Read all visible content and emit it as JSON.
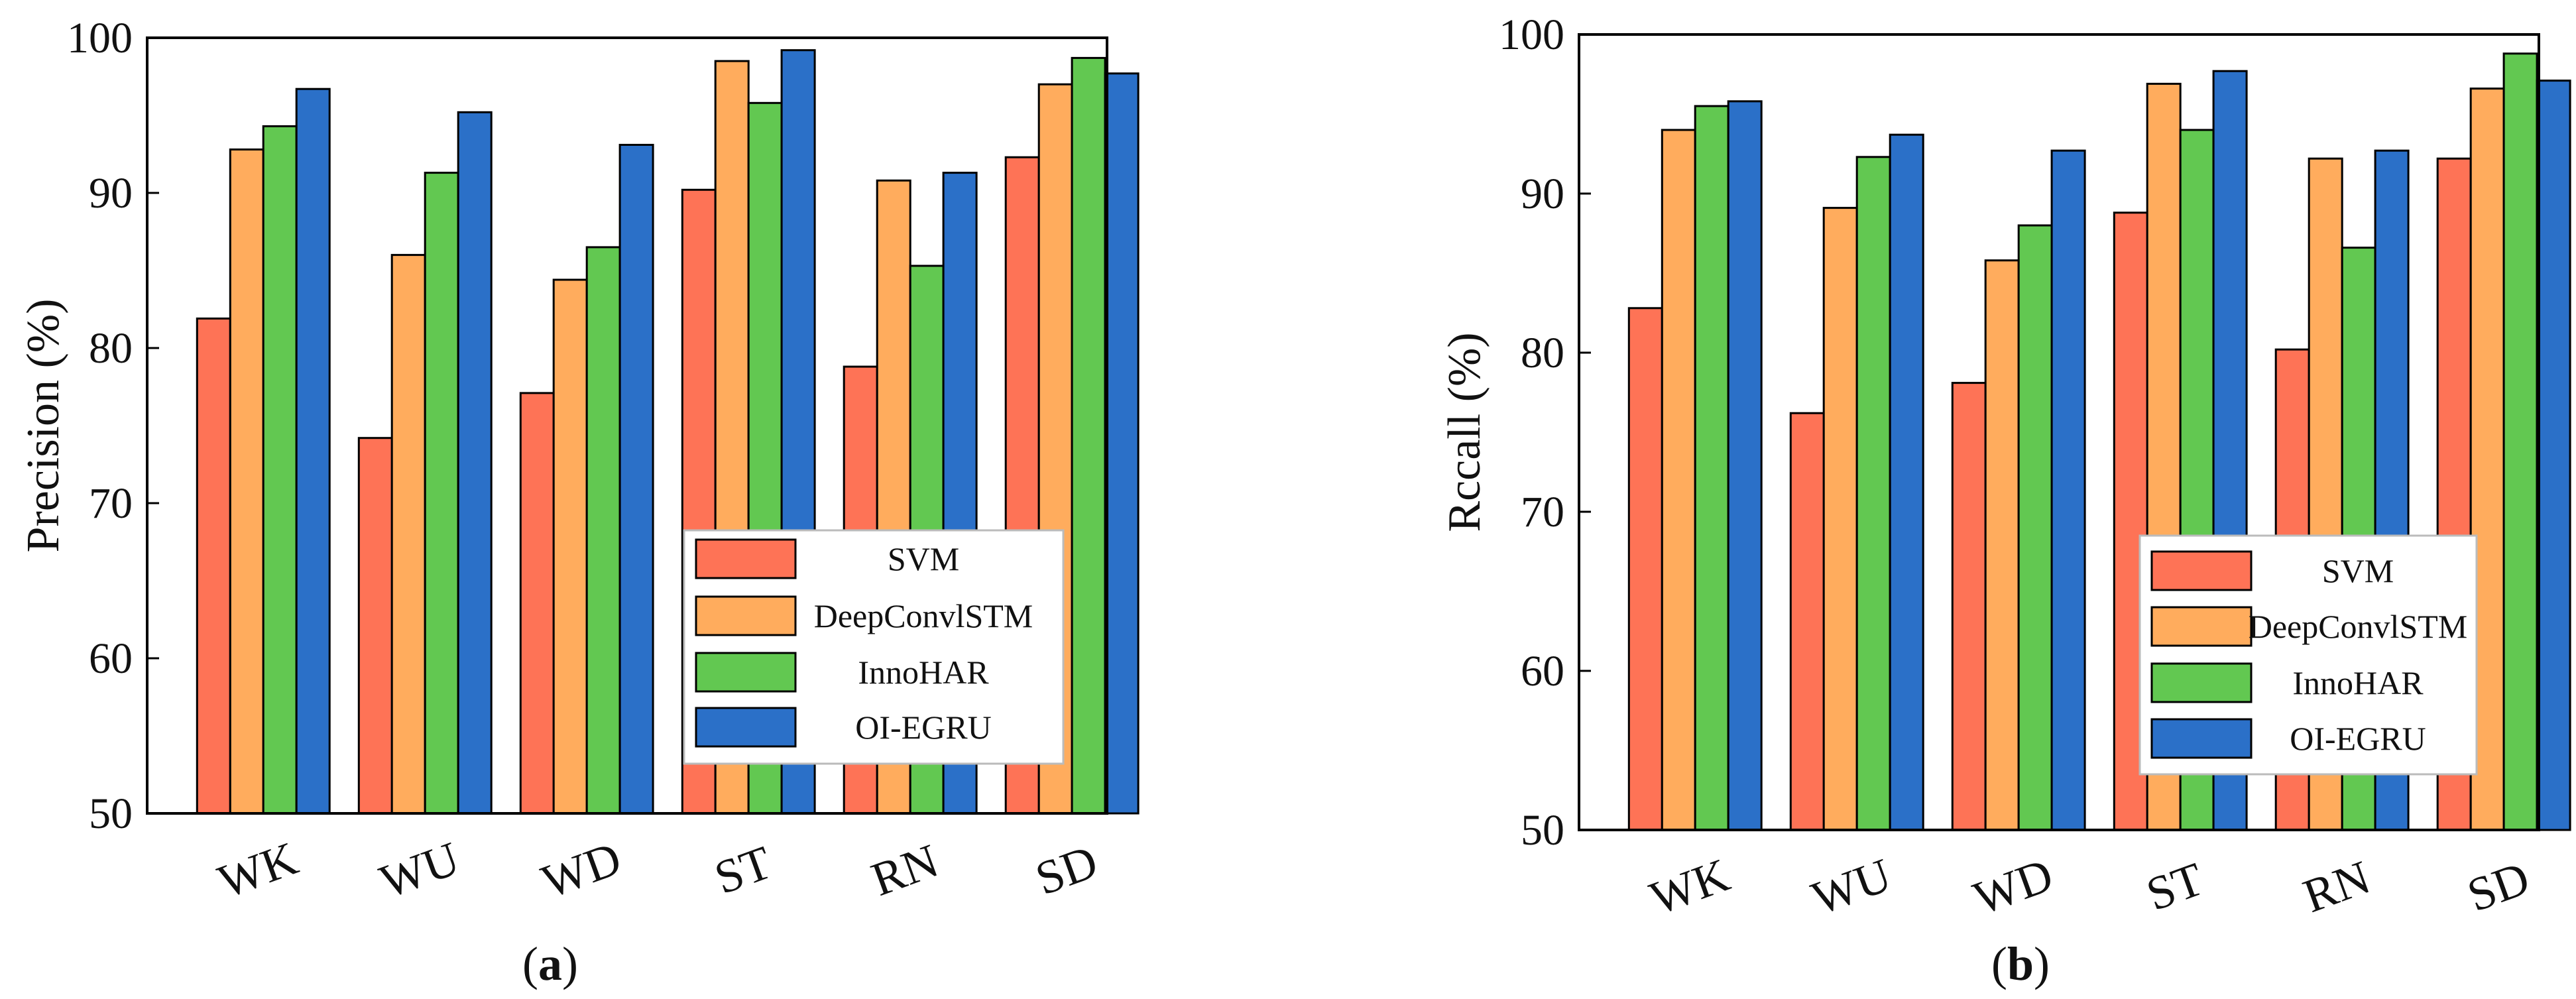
{
  "colors": {
    "SVM": "#fe7356",
    "DeepConvlSTM": "#ffac5d",
    "InnoHAR": "#62c851",
    "OI-EGRU": "#2b70c8"
  },
  "chart_data": [
    {
      "type": "bar",
      "title": "",
      "caption": {
        "open": "(",
        "letter": "a",
        "close": ")"
      },
      "xlabel": "",
      "ylabel": "Precision (%)",
      "ylim": [
        50,
        100
      ],
      "yticks": [
        "50",
        "60",
        "70",
        "80",
        "90",
        "100"
      ],
      "categories": [
        "WK",
        "WU",
        "WD",
        "ST",
        "RN",
        "SD"
      ],
      "legend_position": "lower-right",
      "series": [
        {
          "name": "SVM",
          "values": [
            81.9,
            74.2,
            77.1,
            90.2,
            78.8,
            92.3
          ]
        },
        {
          "name": "DeepConvlSTM",
          "values": [
            92.8,
            86.0,
            84.4,
            98.5,
            90.8,
            97.0
          ]
        },
        {
          "name": "InnoHAR",
          "values": [
            94.3,
            91.3,
            86.5,
            95.8,
            85.3,
            98.7
          ]
        },
        {
          "name": "OI-EGRU",
          "values": [
            96.7,
            95.2,
            93.1,
            99.2,
            91.3,
            97.7
          ]
        }
      ]
    },
    {
      "type": "bar",
      "title": "",
      "caption": {
        "open": "(",
        "letter": "b",
        "close": ")"
      },
      "xlabel": "",
      "ylabel": "Rccall (%)",
      "ylim": [
        50,
        100
      ],
      "yticks": [
        "50",
        "60",
        "70",
        "80",
        "90",
        "100"
      ],
      "categories": [
        "WK",
        "WU",
        "WD",
        "ST",
        "RN",
        "SD"
      ],
      "legend_position": "lower-right",
      "series": [
        {
          "name": "SVM",
          "values": [
            82.8,
            76.2,
            78.1,
            88.8,
            80.2,
            92.2
          ]
        },
        {
          "name": "DeepConvlSTM",
          "values": [
            94.0,
            89.1,
            85.8,
            96.9,
            92.2,
            96.6
          ]
        },
        {
          "name": "InnoHAR",
          "values": [
            95.5,
            92.3,
            88.0,
            94.0,
            86.6,
            98.8
          ]
        },
        {
          "name": "OI-EGRU",
          "values": [
            95.8,
            93.7,
            92.7,
            97.7,
            92.7,
            97.1
          ]
        }
      ]
    }
  ]
}
